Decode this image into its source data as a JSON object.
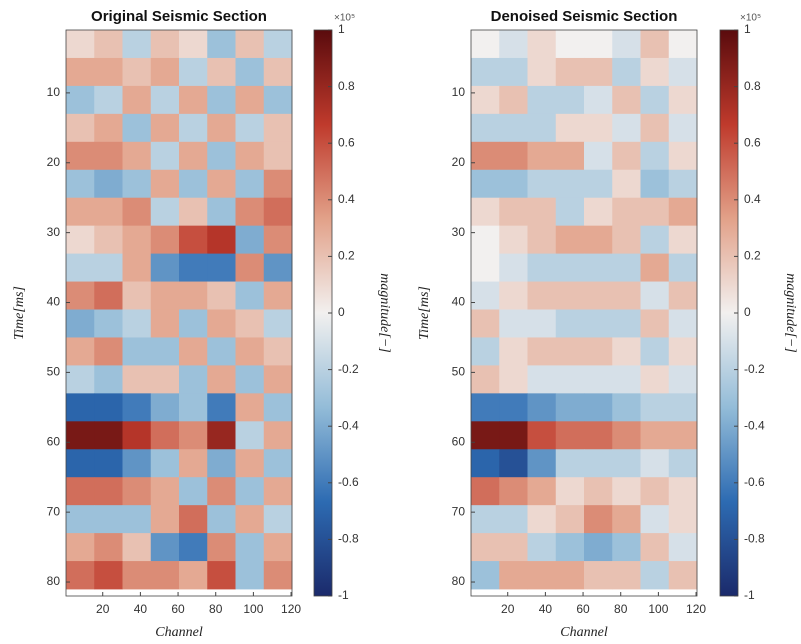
{
  "chart_data": [
    {
      "type": "heatmap",
      "title": "Original Seismic Section",
      "x_label": "Channel",
      "y_label": "Time[ms]",
      "colorbar_label": "magnitude[−]",
      "colorbar_exponent": "×10⁵",
      "x": [
        8,
        23,
        38,
        53,
        68,
        83,
        98,
        113
      ],
      "y": [
        3,
        7,
        11,
        15,
        19,
        23,
        27,
        31,
        35,
        39,
        43,
        47,
        51,
        55,
        59,
        63,
        67,
        71,
        75,
        79
      ],
      "values": [
        [
          0.1,
          0.2,
          -0.2,
          0.2,
          0.1,
          -0.3,
          0.2,
          -0.2
        ],
        [
          0.3,
          0.3,
          0.2,
          0.3,
          -0.2,
          0.2,
          -0.3,
          0.2
        ],
        [
          -0.3,
          -0.2,
          0.3,
          -0.2,
          0.3,
          -0.3,
          0.3,
          -0.3
        ],
        [
          0.2,
          0.3,
          -0.3,
          0.3,
          -0.2,
          0.3,
          -0.2,
          0.2
        ],
        [
          0.4,
          0.4,
          0.3,
          -0.2,
          0.3,
          -0.3,
          0.3,
          0.2
        ],
        [
          -0.3,
          -0.4,
          -0.3,
          0.3,
          -0.3,
          0.3,
          -0.3,
          0.4
        ],
        [
          0.3,
          0.3,
          0.4,
          -0.2,
          0.2,
          -0.3,
          0.4,
          0.5
        ],
        [
          0.1,
          0.2,
          0.3,
          0.4,
          0.6,
          0.7,
          -0.4,
          0.4
        ],
        [
          -0.2,
          -0.2,
          0.3,
          -0.5,
          -0.6,
          -0.6,
          0.4,
          -0.5
        ],
        [
          0.4,
          0.5,
          0.2,
          0.3,
          0.3,
          0.2,
          -0.3,
          0.3
        ],
        [
          -0.4,
          -0.3,
          -0.2,
          0.3,
          -0.3,
          0.3,
          0.2,
          -0.2
        ],
        [
          0.3,
          0.4,
          -0.3,
          -0.3,
          0.3,
          -0.3,
          0.3,
          0.2
        ],
        [
          -0.2,
          -0.3,
          0.2,
          0.2,
          -0.3,
          0.3,
          -0.3,
          0.3
        ],
        [
          -0.7,
          -0.7,
          -0.6,
          -0.4,
          -0.3,
          -0.6,
          0.3,
          -0.3
        ],
        [
          0.9,
          0.9,
          0.7,
          0.5,
          0.4,
          0.8,
          -0.2,
          0.3
        ],
        [
          -0.7,
          -0.7,
          -0.5,
          -0.3,
          0.3,
          -0.4,
          0.3,
          -0.3
        ],
        [
          0.5,
          0.5,
          0.4,
          0.3,
          -0.3,
          0.4,
          -0.3,
          0.3
        ],
        [
          -0.3,
          -0.3,
          -0.3,
          0.3,
          0.5,
          -0.3,
          0.3,
          -0.2
        ],
        [
          0.3,
          0.4,
          0.2,
          -0.5,
          -0.6,
          0.4,
          -0.3,
          0.3
        ],
        [
          0.5,
          0.6,
          0.4,
          0.4,
          0.3,
          0.6,
          -0.3,
          0.4
        ]
      ],
      "xlim": [
        0.5,
        120.5
      ],
      "xticks": [
        20,
        40,
        60,
        80,
        100,
        120
      ],
      "ylim": [
        1,
        82
      ],
      "yticks": [
        10,
        20,
        30,
        40,
        50,
        60,
        70,
        80
      ],
      "clim": [
        -1,
        1
      ],
      "cticks": [
        -1,
        -0.8,
        -0.6,
        -0.4,
        -0.2,
        0,
        0.2,
        0.4,
        0.6,
        0.8,
        1
      ],
      "colormap": [
        "#1b2a6b",
        "#2d6bb2",
        "#93bcd8",
        "#f2f0ef",
        "#e2a189",
        "#bf3a2c",
        "#5a0b0d"
      ]
    },
    {
      "type": "heatmap",
      "title": "Denoised Seismic Section",
      "x_label": "Channel",
      "y_label": "Time[ms]",
      "colorbar_label": "magnitude[−]",
      "colorbar_exponent": "×10⁵",
      "x": [
        8,
        23,
        38,
        53,
        68,
        83,
        98,
        113
      ],
      "y": [
        3,
        7,
        11,
        15,
        19,
        23,
        27,
        31,
        35,
        39,
        43,
        47,
        51,
        55,
        59,
        63,
        67,
        71,
        75,
        79
      ],
      "values": [
        [
          0,
          -0.1,
          0.1,
          0,
          0,
          -0.1,
          0.2,
          0
        ],
        [
          -0.2,
          -0.2,
          0.1,
          0.2,
          0.2,
          -0.2,
          0.1,
          -0.1
        ],
        [
          0.1,
          0.2,
          -0.2,
          -0.2,
          -0.1,
          0.2,
          -0.2,
          0.1
        ],
        [
          -0.2,
          -0.2,
          -0.2,
          0.1,
          0.1,
          -0.1,
          0.2,
          -0.1
        ],
        [
          0.4,
          0.4,
          0.3,
          0.3,
          -0.1,
          0.2,
          -0.2,
          0.1
        ],
        [
          -0.3,
          -0.3,
          -0.2,
          -0.2,
          -0.2,
          0.1,
          -0.3,
          -0.2
        ],
        [
          0.1,
          0.2,
          0.2,
          -0.2,
          0.1,
          0.2,
          0.2,
          0.3
        ],
        [
          0,
          0.1,
          0.2,
          0.3,
          0.3,
          0.2,
          -0.2,
          0.1
        ],
        [
          0,
          -0.1,
          -0.2,
          -0.2,
          -0.2,
          -0.2,
          0.3,
          -0.2
        ],
        [
          -0.1,
          0.1,
          0.2,
          0.2,
          0.2,
          0.2,
          -0.1,
          0.2
        ],
        [
          0.2,
          -0.1,
          -0.1,
          -0.2,
          -0.2,
          -0.2,
          0.2,
          -0.1
        ],
        [
          -0.2,
          0.1,
          0.2,
          0.2,
          0.2,
          0.1,
          -0.2,
          0.1
        ],
        [
          0.2,
          0.1,
          -0.1,
          -0.1,
          -0.1,
          -0.1,
          0.1,
          -0.1
        ],
        [
          -0.6,
          -0.6,
          -0.5,
          -0.4,
          -0.4,
          -0.3,
          -0.2,
          -0.2
        ],
        [
          0.9,
          0.9,
          0.6,
          0.5,
          0.5,
          0.4,
          0.3,
          0.3
        ],
        [
          -0.7,
          -0.8,
          -0.5,
          -0.2,
          -0.2,
          -0.2,
          -0.1,
          -0.2
        ],
        [
          0.5,
          0.4,
          0.3,
          0.1,
          0.2,
          0.1,
          0.2,
          0.1
        ],
        [
          -0.2,
          -0.2,
          0.1,
          0.2,
          0.4,
          0.3,
          -0.1,
          0.1
        ],
        [
          0.2,
          0.2,
          -0.2,
          -0.3,
          -0.4,
          -0.3,
          0.2,
          -0.1
        ],
        [
          -0.3,
          0.3,
          0.3,
          0.3,
          0.2,
          0.2,
          -0.2,
          0.2
        ]
      ],
      "xlim": [
        0.5,
        120.5
      ],
      "xticks": [
        20,
        40,
        60,
        80,
        100,
        120
      ],
      "ylim": [
        1,
        82
      ],
      "yticks": [
        10,
        20,
        30,
        40,
        50,
        60,
        70,
        80
      ],
      "clim": [
        -1,
        1
      ],
      "cticks": [
        -1,
        -0.8,
        -0.6,
        -0.4,
        -0.2,
        0,
        0.2,
        0.4,
        0.6,
        0.8,
        1
      ],
      "colormap": [
        "#1b2a6b",
        "#2d6bb2",
        "#93bcd8",
        "#f2f0ef",
        "#e2a189",
        "#bf3a2c",
        "#5a0b0d"
      ]
    }
  ]
}
